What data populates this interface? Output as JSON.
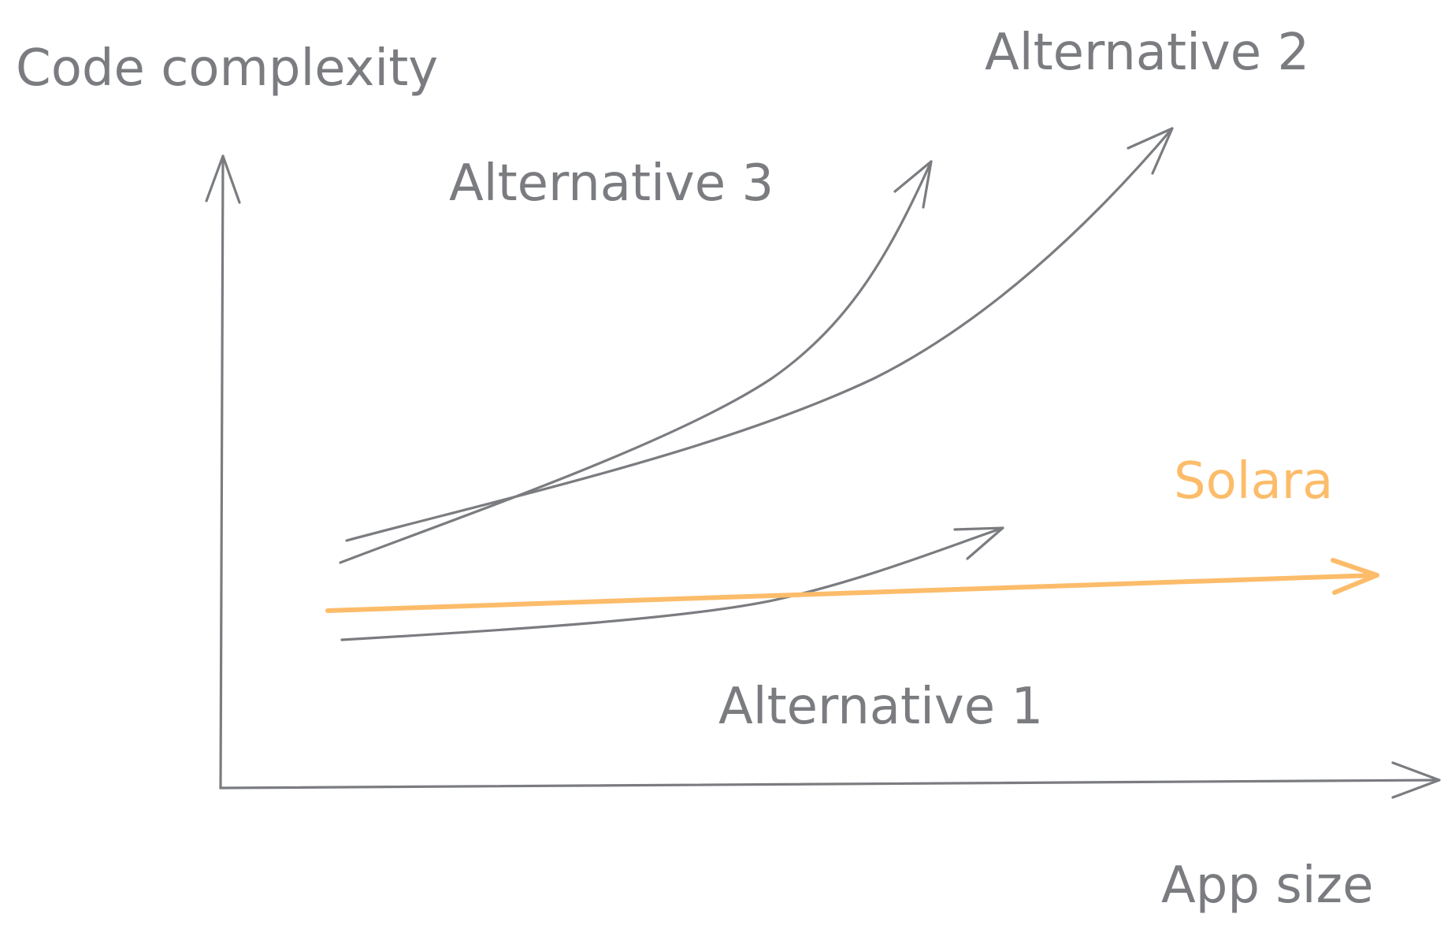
{
  "axes": {
    "y_label": "Code complexity",
    "x_label": "App size"
  },
  "curves": [
    {
      "id": "alternative-1",
      "label": "Alternative 1",
      "color": "#7a7c80"
    },
    {
      "id": "alternative-2",
      "label": "Alternative 2",
      "color": "#7a7c80"
    },
    {
      "id": "alternative-3",
      "label": "Alternative 3",
      "color": "#7a7c80"
    },
    {
      "id": "solara",
      "label": "Solara",
      "color": "#fcbc6a"
    }
  ],
  "colors": {
    "ink": "#7a7c80",
    "accent": "#fcbc6a",
    "background": "#ffffff"
  }
}
